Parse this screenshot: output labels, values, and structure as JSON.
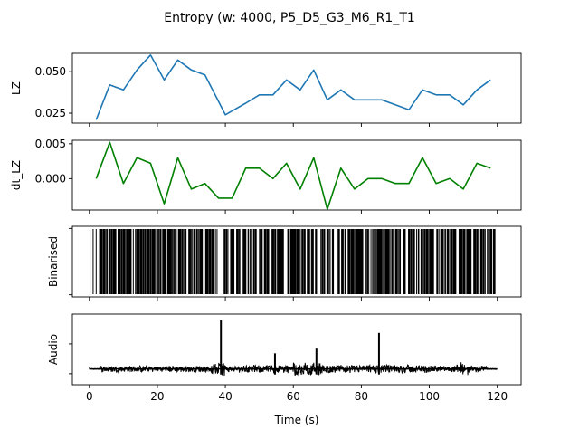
{
  "chart_data": {
    "title": "Entropy (w: 4000, P5_D5_G3_M6_R1_T1",
    "xlabel": "Time (s)",
    "xlim": [
      -5,
      127
    ],
    "xticks": [
      0,
      20,
      40,
      60,
      80,
      100,
      120
    ],
    "xtick_labels": [
      "0",
      "20",
      "40",
      "60",
      "80",
      "100",
      "120"
    ],
    "panels": [
      {
        "type": "line",
        "ylabel": "LZ",
        "ylim": [
          0.019,
          0.061
        ],
        "yticks": [
          0.025,
          0.05
        ],
        "ytick_labels": [
          "0.025",
          "0.050"
        ],
        "series": [
          {
            "color": "#1f77b4",
            "x": [
              2,
              6,
              10,
              14,
              18,
              22,
              26,
              30,
              34,
              40,
              46,
              50,
              54,
              58,
              62,
              66,
              70,
              74,
              78,
              82,
              86,
              90,
              94,
              98,
              102,
              106,
              110,
              114,
              118
            ],
            "y": [
              0.021,
              0.042,
              0.039,
              0.051,
              0.06,
              0.045,
              0.057,
              0.051,
              0.048,
              0.024,
              0.031,
              0.036,
              0.036,
              0.045,
              0.039,
              0.051,
              0.033,
              0.039,
              0.033,
              0.033,
              0.033,
              0.03,
              0.027,
              0.039,
              0.036,
              0.036,
              0.03,
              0.039,
              0.045
            ]
          }
        ]
      },
      {
        "type": "line",
        "ylabel": "dt_LZ",
        "ylim": [
          -0.0045,
          0.0055
        ],
        "yticks": [
          0.0,
          0.005
        ],
        "ytick_labels": [
          "0.000",
          "0.005"
        ],
        "series": [
          {
            "color": "#008000",
            "x": [
              2,
              6,
              10,
              14,
              18,
              22,
              26,
              30,
              34,
              38,
              42,
              46,
              50,
              54,
              58,
              62,
              66,
              70,
              74,
              78,
              82,
              86,
              90,
              94,
              98,
              102,
              106,
              110,
              114,
              118
            ],
            "y": [
              0.0,
              0.0052,
              -0.0007,
              0.003,
              0.0022,
              -0.0036,
              0.003,
              -0.0015,
              -0.0007,
              -0.0028,
              -0.0028,
              0.0015,
              0.0015,
              0.0,
              0.0022,
              -0.0015,
              0.003,
              -0.0044,
              0.0015,
              -0.0015,
              0.0,
              0.0,
              -0.0007,
              -0.0007,
              0.003,
              -0.0007,
              0.0,
              -0.0015,
              0.0022,
              0.0015
            ]
          }
        ]
      },
      {
        "type": "event_raster",
        "ylabel": "Binarised",
        "ylim": [
          0,
          1
        ],
        "color": "#000000",
        "events_sparse": [
          0.2,
          1.1,
          2.0
        ],
        "dense_start": 3.0,
        "dense_end": 119.5,
        "gaps": [
          [
            36.5,
            37.0
          ],
          [
            37.6,
            39.5
          ],
          [
            41.0,
            41.5
          ],
          [
            42.7,
            43.3
          ],
          [
            44.5,
            45.0
          ],
          [
            47.5,
            48.2
          ],
          [
            53.0,
            53.5
          ],
          [
            57.5,
            58.0
          ],
          [
            63.5,
            64.0
          ],
          [
            72.0,
            72.6
          ],
          [
            75.5,
            76.0
          ],
          [
            80.5,
            81.2
          ],
          [
            89.5,
            90.0
          ],
          [
            93.0,
            93.6
          ],
          [
            97.0,
            97.5
          ],
          [
            103.0,
            103.5
          ],
          [
            108.0,
            108.6
          ],
          [
            112.5,
            113.0
          ],
          [
            116.5,
            117.0
          ]
        ]
      },
      {
        "type": "waveform",
        "ylabel": "Audio",
        "ylim": [
          -1.0,
          3.5
        ],
        "color": "#000000",
        "x_start": 0,
        "x_end": 120,
        "spikes": [
          {
            "x": 38.7,
            "y": 3.1
          },
          {
            "x": 54.6,
            "y": 1.0
          },
          {
            "x": 66.8,
            "y": 1.3
          },
          {
            "x": 85.2,
            "y": 2.3
          }
        ],
        "bursts": [
          {
            "x0": 36.0,
            "x1": 40.0,
            "amp": 0.5
          },
          {
            "x0": 60.0,
            "x1": 68.0,
            "amp": 0.45
          },
          {
            "x0": 108.0,
            "x1": 112.0,
            "amp": 0.45
          }
        ]
      }
    ]
  }
}
